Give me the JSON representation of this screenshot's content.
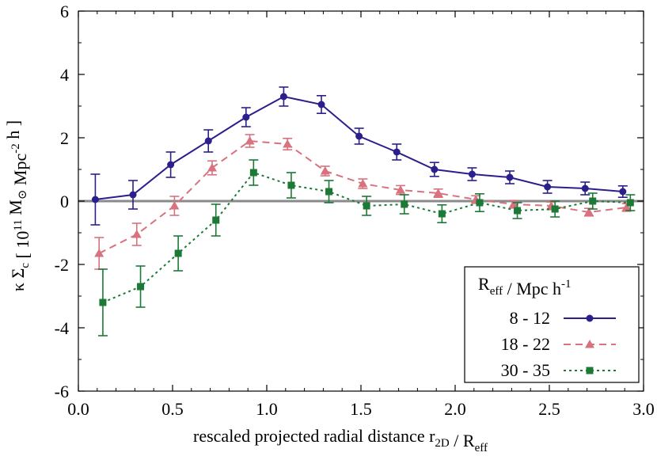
{
  "chart_data": {
    "type": "line",
    "xlabel": "rescaled projected radial distance  r2D / Reff",
    "ylabel": "κ Σc   [ 10^11 M⊙ Mpc^-2 h ]",
    "xlim": [
      0.0,
      3.0
    ],
    "ylim": [
      -6,
      6
    ],
    "x_ticks": [
      "0.0",
      "0.5",
      "1.0",
      "1.5",
      "2.0",
      "2.5",
      "3.0"
    ],
    "y_ticks": [
      "-6",
      "-4",
      "-2",
      "0",
      "2",
      "4",
      "6"
    ],
    "legend_title": "Reff / Mpc h^-1",
    "legend_position": "bottom-right",
    "zero_line": true,
    "series": [
      {
        "name": "8 - 12",
        "color": "#2b1f8c",
        "marker": "circle",
        "dash": "solid",
        "x": [
          0.09,
          0.29,
          0.49,
          0.69,
          0.89,
          1.09,
          1.29,
          1.49,
          1.69,
          1.89,
          2.09,
          2.29,
          2.49,
          2.69,
          2.89
        ],
        "y": [
          0.05,
          0.2,
          1.15,
          1.9,
          2.65,
          3.3,
          3.05,
          2.05,
          1.55,
          1.0,
          0.85,
          0.75,
          0.45,
          0.4,
          0.3
        ],
        "err": [
          0.8,
          0.45,
          0.4,
          0.35,
          0.3,
          0.3,
          0.28,
          0.25,
          0.25,
          0.22,
          0.2,
          0.2,
          0.2,
          0.2,
          0.18
        ]
      },
      {
        "name": "18 - 22",
        "color": "#d8727e",
        "marker": "triangle",
        "dash": "dashed",
        "x": [
          0.11,
          0.31,
          0.51,
          0.71,
          0.91,
          1.11,
          1.31,
          1.51,
          1.71,
          1.91,
          2.11,
          2.31,
          2.51,
          2.71,
          2.91
        ],
        "y": [
          -1.65,
          -1.05,
          -0.15,
          1.05,
          1.9,
          1.8,
          0.95,
          0.55,
          0.35,
          0.25,
          0.05,
          -0.1,
          -0.15,
          -0.35,
          -0.2
        ],
        "err": [
          0.5,
          0.35,
          0.3,
          0.22,
          0.2,
          0.18,
          0.15,
          0.15,
          0.14,
          0.13,
          0.12,
          0.12,
          0.12,
          0.12,
          0.12
        ]
      },
      {
        "name": "30 - 35",
        "color": "#1c7a36",
        "marker": "square",
        "dash": "dotted",
        "x": [
          0.13,
          0.33,
          0.53,
          0.73,
          0.93,
          1.13,
          1.33,
          1.53,
          1.73,
          1.93,
          2.13,
          2.33,
          2.53,
          2.73,
          2.93
        ],
        "y": [
          -3.2,
          -2.7,
          -1.65,
          -0.6,
          0.9,
          0.5,
          0.3,
          -0.15,
          -0.1,
          -0.4,
          -0.05,
          -0.3,
          -0.25,
          0.0,
          -0.05
        ],
        "err": [
          1.05,
          0.65,
          0.55,
          0.5,
          0.4,
          0.4,
          0.35,
          0.3,
          0.3,
          0.28,
          0.28,
          0.25,
          0.25,
          0.25,
          0.25
        ]
      }
    ]
  }
}
